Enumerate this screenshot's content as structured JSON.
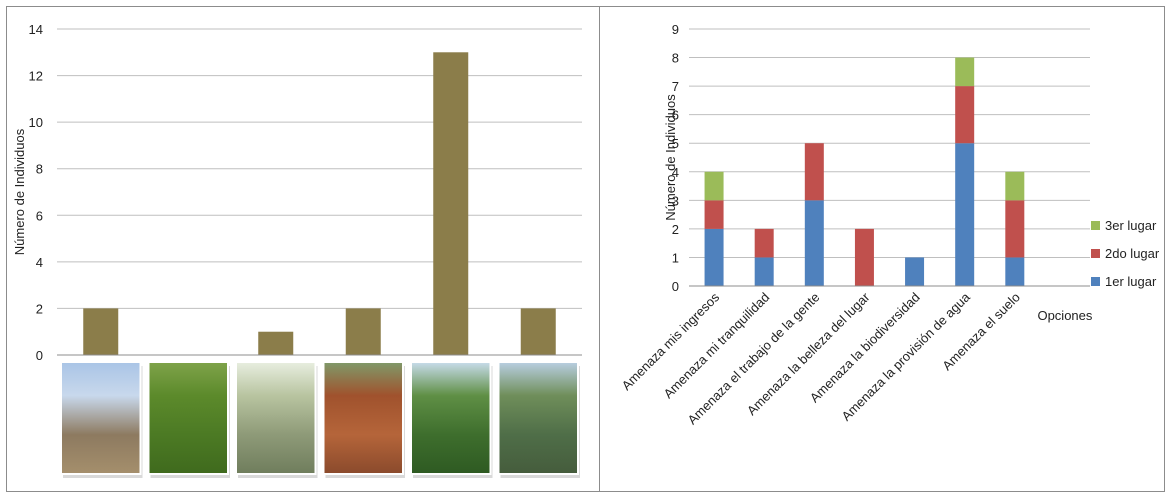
{
  "chart_data": [
    {
      "type": "bar",
      "ylabel": "Número de Individuos",
      "ylim": [
        0,
        14
      ],
      "yticks": [
        0,
        2,
        4,
        6,
        8,
        10,
        12,
        14
      ],
      "categories": [
        "pastizal-con-ganado",
        "cultivo-verde",
        "pastizal-natural",
        "sorgo",
        "forestacion",
        "monte-nativo"
      ],
      "values": [
        2,
        0,
        1,
        2,
        13,
        2
      ],
      "grid": true,
      "colors": {
        "bar": "#8b7d4a",
        "grid": "#bfbfbf"
      }
    },
    {
      "type": "bar",
      "stacked": true,
      "ylabel": "Número de Individuos",
      "xlabel": "Opciones",
      "ylim": [
        0,
        9
      ],
      "yticks": [
        0,
        1,
        2,
        3,
        4,
        5,
        6,
        7,
        8,
        9
      ],
      "categories": [
        "Amenaza mis ingresos",
        "Amenaza mi tranquilidad",
        "Amenaza el trabajo de la gente",
        "Amenaza la belleza del lugar",
        "Amenaza la biodiversidad",
        "Amenaza la provisión de agua",
        "Amenaza el suelo"
      ],
      "series": [
        {
          "name": "1er lugar",
          "values": [
            2,
            1,
            3,
            0,
            1,
            5,
            1
          ],
          "color": "#4f81bd"
        },
        {
          "name": "2do lugar",
          "values": [
            1,
            1,
            2,
            2,
            0,
            2,
            2
          ],
          "color": "#c0504d"
        },
        {
          "name": "3er lugar",
          "values": [
            1,
            0,
            0,
            0,
            0,
            1,
            1
          ],
          "color": "#9bbb59"
        }
      ],
      "legend": "right",
      "grid": true
    }
  ]
}
